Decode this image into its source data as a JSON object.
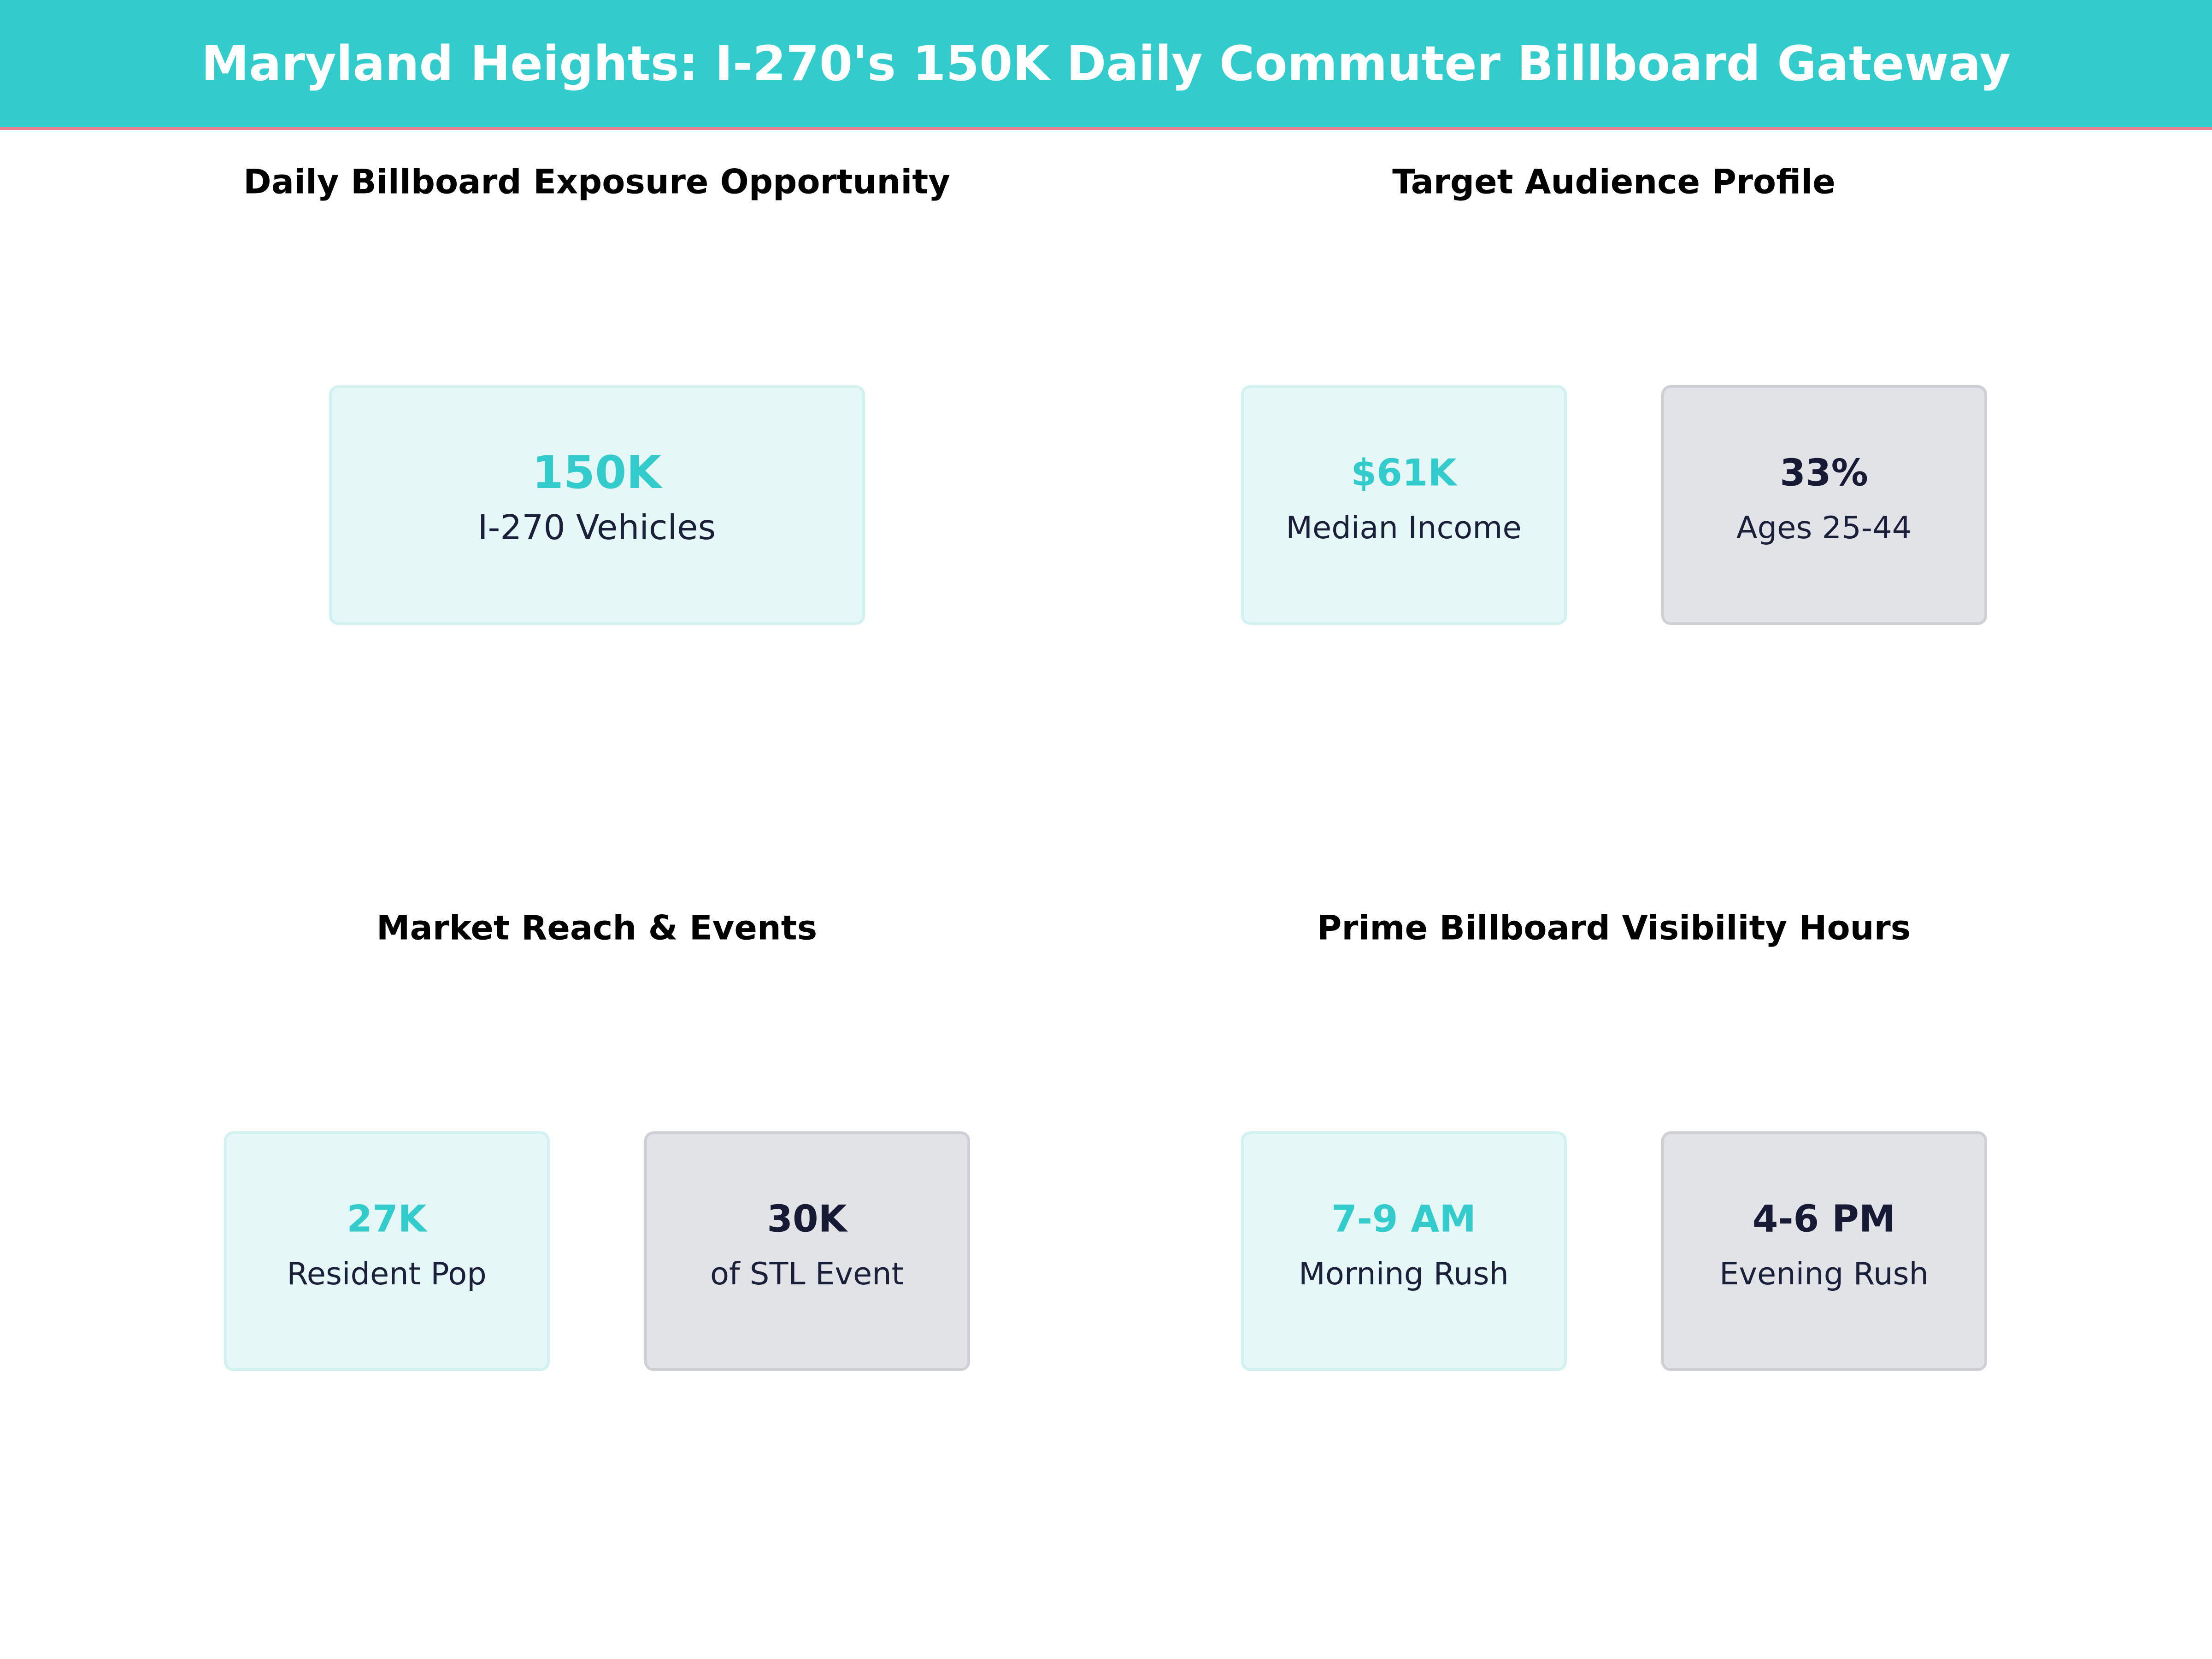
{
  "header": {
    "title": "Maryland Heights: I-270's 150K Daily Commuter Billboard Gateway"
  },
  "panels": [
    {
      "title": "Daily Billboard Exposure Opportunity",
      "cards": [
        {
          "value": "150K",
          "label": "I-270 Vehicles"
        }
      ]
    },
    {
      "title": "Target Audience Profile",
      "cards": [
        {
          "value": "$61K",
          "label": "Median Income"
        },
        {
          "value": "33%",
          "label": "Ages 25-44"
        }
      ]
    },
    {
      "title": "Market Reach & Events",
      "cards": [
        {
          "value": "27K",
          "label": "Resident Pop"
        },
        {
          "value": "30K",
          "label": "of STL Event"
        }
      ]
    },
    {
      "title": "Prime Billboard Visibility Hours",
      "cards": [
        {
          "value": "7-9 AM",
          "label": "Morning Rush"
        },
        {
          "value": "4-6 PM",
          "label": "Evening Rush"
        }
      ]
    }
  ]
}
